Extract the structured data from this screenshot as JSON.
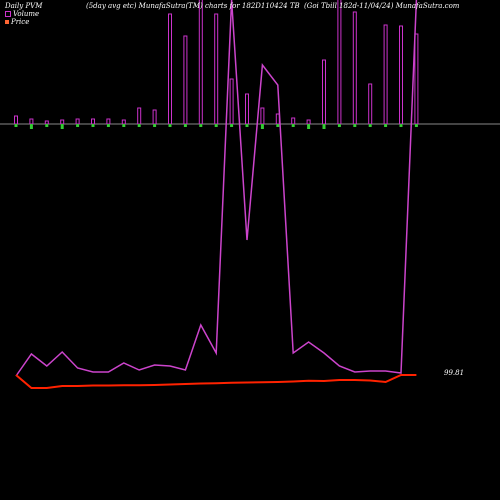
{
  "header": {
    "left": "Daily PVM",
    "center": "(5day avg etc) MunafaSutra(TM) charts for 182D110424 TB",
    "right": "(Goi  Tbill 182d-11/04/24) MunafaSutra.com"
  },
  "legend": [
    {
      "label": "Volume",
      "color": "#cc33cc"
    },
    {
      "label": "Price",
      "color": "#ff6633"
    }
  ],
  "price_label": "99.81",
  "colors": {
    "background": "#000000",
    "volume_up": "#cc33cc",
    "volume_down": "#33cc33",
    "volume_line": "#cc44cc",
    "price_line": "#ff2200",
    "baseline": "#888888"
  },
  "chart_data": {
    "type": "line",
    "x_count": 27,
    "series": [
      {
        "name": "Volume",
        "kind": "bars",
        "values": [
          8,
          5,
          3,
          4,
          5,
          5,
          5,
          4,
          16,
          14,
          110,
          88,
          127,
          110,
          45,
          30,
          16,
          10,
          6,
          4,
          64,
          260,
          112,
          40,
          99,
          98,
          90
        ]
      },
      {
        "name": "Volume Line",
        "kind": "line",
        "values": [
          376,
          354,
          366,
          352,
          368,
          372,
          372,
          363,
          370,
          365,
          366,
          370,
          325,
          353,
          0,
          240,
          65,
          85,
          353,
          342,
          353,
          366,
          372,
          371,
          371,
          373,
          0
        ]
      },
      {
        "name": "Price",
        "kind": "line",
        "values": [
          375,
          388,
          388,
          386,
          386,
          385.5,
          385.5,
          385.3,
          385.2,
          385,
          384.5,
          384,
          383.5,
          383.2,
          382.8,
          382.5,
          382.2,
          382,
          381.5,
          380.8,
          381,
          380,
          380,
          380.5,
          382,
          375,
          375
        ]
      }
    ],
    "volume_sign": [
      "up",
      "down",
      "up",
      "down",
      "up",
      "up",
      "up",
      "up",
      "up",
      "up",
      "up",
      "up",
      "up",
      "up",
      "up",
      "up",
      "down",
      "up",
      "up",
      "down",
      "down",
      "up",
      "up",
      "up",
      "up",
      "up",
      "up"
    ]
  }
}
